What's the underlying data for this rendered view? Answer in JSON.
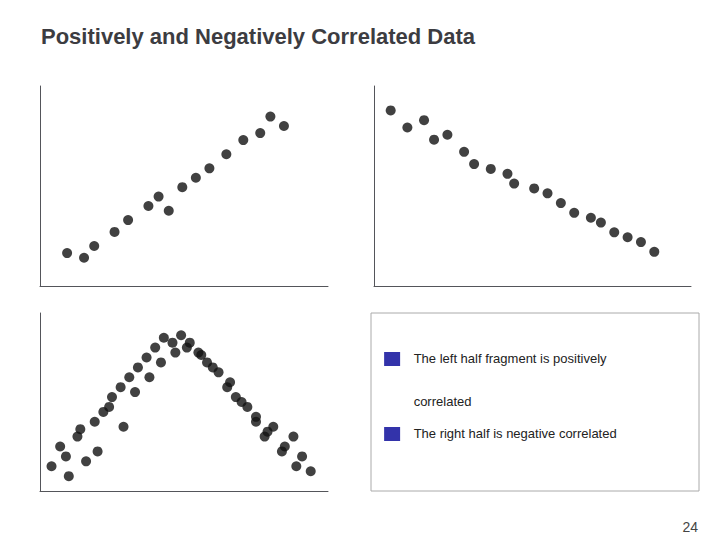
{
  "title": "Positively and Negatively Correlated Data",
  "annotations": [
    {
      "text": "The left half fragment is positively",
      "marker": "square",
      "color": "#3333aa"
    },
    {
      "text": "correlated"
    },
    {
      "text": "The right half is negative correlated",
      "marker": "square",
      "color": "#3333aa"
    },
    {
      "text": "24"
    }
  ],
  "chart_data": [
    {
      "type": "scatter",
      "color": "#111111",
      "xlim": [
        0,
        0.85
      ],
      "ylim": [
        0,
        0.85
      ],
      "tick_labels": false,
      "grid": false,
      "series": [
        {
          "x": [
            0.08,
            0.13,
            0.16,
            0.22,
            0.26,
            0.32,
            0.35,
            0.38,
            0.42,
            0.46,
            0.5,
            0.55,
            0.6,
            0.65,
            0.68,
            0.72
          ],
          "values": [
            0.14,
            0.12,
            0.17,
            0.23,
            0.28,
            0.34,
            0.38,
            0.32,
            0.42,
            0.46,
            0.5,
            0.56,
            0.62,
            0.65,
            0.72,
            0.68
          ]
        }
      ]
    },
    {
      "type": "scatter",
      "color": "#111111",
      "xlim": [
        0,
        0.95
      ],
      "ylim": [
        0,
        0.82
      ],
      "tick_labels": false,
      "grid": false,
      "series": [
        {
          "x": [
            0.05,
            0.1,
            0.15,
            0.18,
            0.22,
            0.27,
            0.3,
            0.35,
            0.4,
            0.42,
            0.48,
            0.52,
            0.56,
            0.6,
            0.65,
            0.68,
            0.72,
            0.76,
            0.8,
            0.84
          ],
          "values": [
            0.72,
            0.65,
            0.68,
            0.6,
            0.62,
            0.55,
            0.5,
            0.48,
            0.46,
            0.42,
            0.4,
            0.38,
            0.34,
            0.3,
            0.28,
            0.26,
            0.22,
            0.2,
            0.18,
            0.14
          ]
        }
      ]
    },
    {
      "type": "scatter",
      "color": "#111111",
      "xlim": [
        0,
        1.0
      ],
      "ylim": [
        0.1,
        0.82
      ],
      "tick_labels": false,
      "grid": false,
      "series": [
        {
          "x": [
            0.04,
            0.07,
            0.1,
            0.13,
            0.16,
            0.19,
            0.22,
            0.25,
            0.28,
            0.31,
            0.34,
            0.37,
            0.4,
            0.43,
            0.46,
            0.49,
            0.52,
            0.55,
            0.58,
            0.62,
            0.65,
            0.68,
            0.72,
            0.75,
            0.78,
            0.81,
            0.85,
            0.88,
            0.91,
            0.94
          ],
          "values": [
            0.2,
            0.28,
            0.16,
            0.32,
            0.22,
            0.38,
            0.42,
            0.48,
            0.52,
            0.56,
            0.6,
            0.64,
            0.68,
            0.72,
            0.7,
            0.73,
            0.7,
            0.66,
            0.62,
            0.58,
            0.52,
            0.48,
            0.44,
            0.38,
            0.32,
            0.36,
            0.28,
            0.32,
            0.24,
            0.18
          ]
        },
        {
          "x": [
            0.09,
            0.14,
            0.2,
            0.24,
            0.29,
            0.33,
            0.38,
            0.42,
            0.47,
            0.51,
            0.56,
            0.6,
            0.66,
            0.7,
            0.75,
            0.79,
            0.84,
            0.89
          ],
          "values": [
            0.24,
            0.35,
            0.26,
            0.44,
            0.36,
            0.5,
            0.56,
            0.62,
            0.66,
            0.68,
            0.65,
            0.6,
            0.54,
            0.46,
            0.4,
            0.34,
            0.26,
            0.2
          ]
        }
      ]
    }
  ]
}
